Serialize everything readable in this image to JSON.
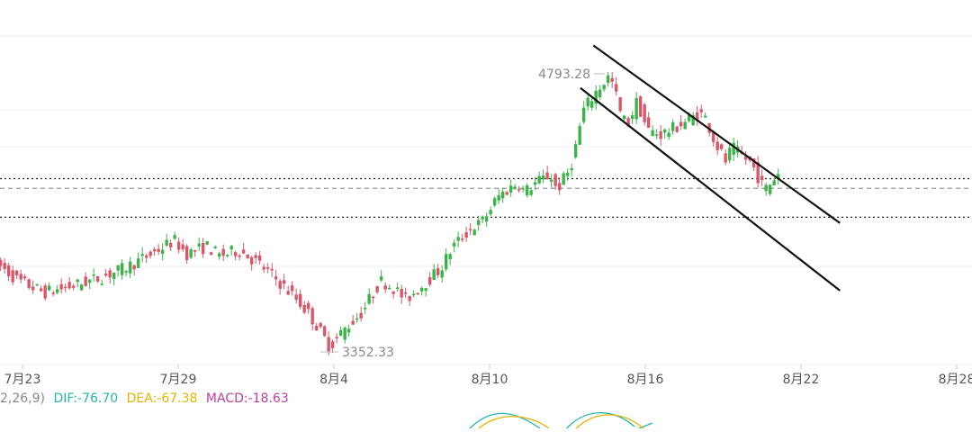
{
  "chart_data": {
    "type": "candlestick",
    "x_ticks": [
      "7月23",
      "7月29",
      "8月4",
      "8月10",
      "8月16",
      "8月22",
      "8月28"
    ],
    "price_range": [
      2700,
      5400
    ],
    "annotations": {
      "high": {
        "label": "4793.28",
        "value": 4793.28
      },
      "low": {
        "label": "3352.33",
        "value": 3352.33
      }
    },
    "horizontal_levels": [
      {
        "value": 4250,
        "style": "dotted",
        "color": "#222222"
      },
      {
        "value": 4200,
        "style": "dashed",
        "color": "#999999"
      },
      {
        "value": 4050,
        "style": "dotted",
        "color": "#222222"
      }
    ],
    "channel": [
      {
        "points": [
          [
            "08-14 00:00",
            4940
          ],
          [
            "08-23 12:00",
            4020
          ]
        ]
      },
      {
        "points": [
          [
            "08-13 12:00",
            4720
          ],
          [
            "08-23 12:00",
            3670
          ]
        ]
      }
    ],
    "candle_colors": {
      "up": "#3cb44b",
      "down": "#d9576b"
    },
    "series_path": [
      [
        "07-22 00:00",
        3830
      ],
      [
        "07-23 00:00",
        3720
      ],
      [
        "07-24 00:00",
        3660
      ],
      [
        "07-25 00:00",
        3690
      ],
      [
        "07-26 00:00",
        3730
      ],
      [
        "07-27 00:00",
        3780
      ],
      [
        "07-28 00:00",
        3850
      ],
      [
        "07-29 00:00",
        3930
      ],
      [
        "07-29 12:00",
        3860
      ],
      [
        "07-30 06:00",
        3900
      ],
      [
        "07-30 18:00",
        3850
      ],
      [
        "07-31 12:00",
        3880
      ],
      [
        "08-01 06:00",
        3810
      ],
      [
        "08-02 00:00",
        3720
      ],
      [
        "08-02 18:00",
        3620
      ],
      [
        "08-03 06:00",
        3540
      ],
      [
        "08-03 18:00",
        3430
      ],
      [
        "08-04 00:00",
        3380
      ],
      [
        "08-04 12:00",
        3460
      ],
      [
        "08-05 06:00",
        3560
      ],
      [
        "08-05 18:00",
        3680
      ],
      [
        "08-06 00:00",
        3720
      ],
      [
        "08-06 12:00",
        3680
      ],
      [
        "08-06 22:00",
        3620
      ],
      [
        "08-07 12:00",
        3690
      ],
      [
        "08-08 06:00",
        3780
      ],
      [
        "08-08 18:00",
        3900
      ],
      [
        "08-09 12:00",
        4000
      ],
      [
        "08-09 20:00",
        4020
      ],
      [
        "08-10 12:00",
        4160
      ],
      [
        "08-11 06:00",
        4230
      ],
      [
        "08-11 12:00",
        4180
      ],
      [
        "08-11 20:00",
        4220
      ],
      [
        "08-12 12:00",
        4270
      ],
      [
        "08-12 18:00",
        4190
      ],
      [
        "08-13 06:00",
        4300
      ],
      [
        "08-13 12:00",
        4430
      ],
      [
        "08-13 18:00",
        4600
      ],
      [
        "08-14 06:00",
        4700
      ],
      [
        "08-14 18:00",
        4780
      ],
      [
        "08-14 23:00",
        4720
      ],
      [
        "08-15 06:00",
        4560
      ],
      [
        "08-15 12:00",
        4540
      ],
      [
        "08-15 20:00",
        4650
      ],
      [
        "08-16 06:00",
        4500
      ],
      [
        "08-16 18:00",
        4480
      ],
      [
        "08-17 06:00",
        4510
      ],
      [
        "08-17 18:00",
        4550
      ],
      [
        "08-18 06:00",
        4590
      ],
      [
        "08-18 12:00",
        4560
      ],
      [
        "08-18 20:00",
        4440
      ],
      [
        "08-19 06:00",
        4340
      ],
      [
        "08-19 12:00",
        4410
      ],
      [
        "08-19 18:00",
        4380
      ],
      [
        "08-20 06:00",
        4330
      ],
      [
        "08-20 12:00",
        4260
      ],
      [
        "08-20 18:00",
        4190
      ],
      [
        "08-21 00:00",
        4230
      ],
      [
        "08-21 06:00",
        4280
      ]
    ],
    "indicator": {
      "params_text": "2,26,9)",
      "dif_text": "DIF:-76.70",
      "dea_text": "DEA:-67.38",
      "macd_text": "MACD:-18.63",
      "colors": {
        "params": "#888888",
        "dif": "#26b4b0",
        "dea": "#e3b400",
        "macd": "#c040a0"
      }
    },
    "grid": true
  }
}
